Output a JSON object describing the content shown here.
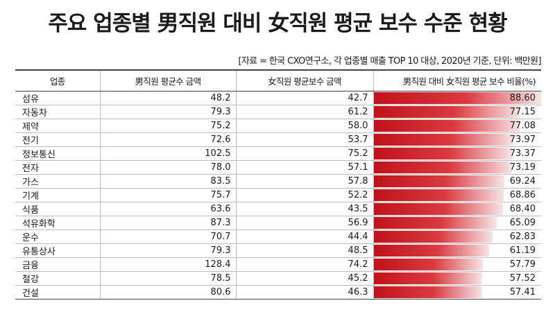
{
  "title": "주요 업종별 男직원 대비 女직원 평균 보수 수준 현황",
  "source": "[자료 = 한국 CXO연구소, 각 업종별 매출 TOP 10 대상, 2020년 기준, 단위: 백만원]",
  "chart_data": {
    "type": "table",
    "columns": [
      "업종",
      "男직원 평균수 금액",
      "女직원 평균보수 금액",
      "男직원 대비 女직원 평균 보수 비율(%)"
    ],
    "rows": [
      {
        "industry": "섬유",
        "male": "48.2",
        "female": "42.7",
        "ratio": "88.60"
      },
      {
        "industry": "자동차",
        "male": "79.3",
        "female": "61.2",
        "ratio": "77.15"
      },
      {
        "industry": "제약",
        "male": "75.2",
        "female": "58.0",
        "ratio": "77.08"
      },
      {
        "industry": "전기",
        "male": "72.6",
        "female": "53.7",
        "ratio": "73.97"
      },
      {
        "industry": "정보통신",
        "male": "102.5",
        "female": "75.2",
        "ratio": "73.37"
      },
      {
        "industry": "전자",
        "male": "78.0",
        "female": "57.1",
        "ratio": "73.19"
      },
      {
        "industry": "가스",
        "male": "83.5",
        "female": "57.8",
        "ratio": "69.24"
      },
      {
        "industry": "기계",
        "male": "75.7",
        "female": "52.2",
        "ratio": "68.86"
      },
      {
        "industry": "식품",
        "male": "63.6",
        "female": "43.5",
        "ratio": "68.40"
      },
      {
        "industry": "석유화학",
        "male": "87.3",
        "female": "56.9",
        "ratio": "65.09"
      },
      {
        "industry": "운수",
        "male": "70.7",
        "female": "44.4",
        "ratio": "62.83"
      },
      {
        "industry": "유통상사",
        "male": "79.3",
        "female": "48.5",
        "ratio": "61.19"
      },
      {
        "industry": "금융",
        "male": "128.4",
        "female": "74.2",
        "ratio": "57.79"
      },
      {
        "industry": "철강",
        "male": "78.5",
        "female": "45.2",
        "ratio": "57.52"
      },
      {
        "industry": "건설",
        "male": "80.6",
        "female": "46.3",
        "ratio": "57.41"
      }
    ],
    "ratio_max": 88.6,
    "colors": {
      "bar": "#c0121a",
      "bar_fade": "#f7e4e5",
      "rule": "#444444",
      "grid": "#bdbdbd"
    }
  }
}
